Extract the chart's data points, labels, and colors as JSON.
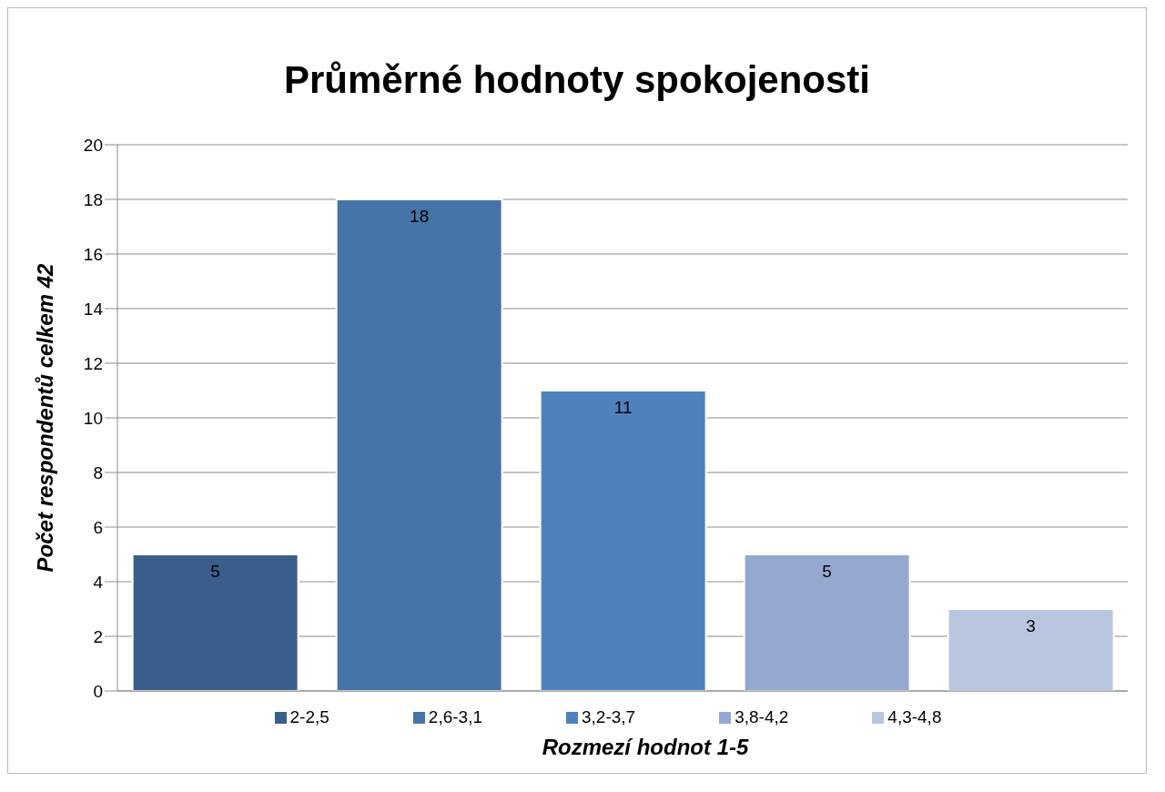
{
  "chart_data": {
    "type": "bar",
    "title": "Průměrné hodnoty spokojenosti",
    "xlabel": "Rozmezí hodnot 1-5",
    "ylabel": "Počet respondentů celkem 42",
    "categories": [
      null
    ],
    "series": [
      {
        "name": "2-2,5",
        "color": "#3b5f8d",
        "values": [
          5
        ]
      },
      {
        "name": "2,6-3,1",
        "color": "#4674a8",
        "values": [
          18
        ]
      },
      {
        "name": "3,2-3,7",
        "color": "#4f81bd",
        "values": [
          11
        ]
      },
      {
        "name": "3,8-4,2",
        "color": "#95a9d0",
        "values": [
          5
        ]
      },
      {
        "name": "4,3-4,8",
        "color": "#b9c6e0",
        "values": [
          3
        ]
      }
    ],
    "ylim": [
      0,
      20
    ],
    "yticks": [
      0,
      2,
      4,
      6,
      8,
      10,
      12,
      14,
      16,
      18,
      20
    ],
    "grid": "y",
    "legend": "bottom",
    "data_labels": true
  }
}
